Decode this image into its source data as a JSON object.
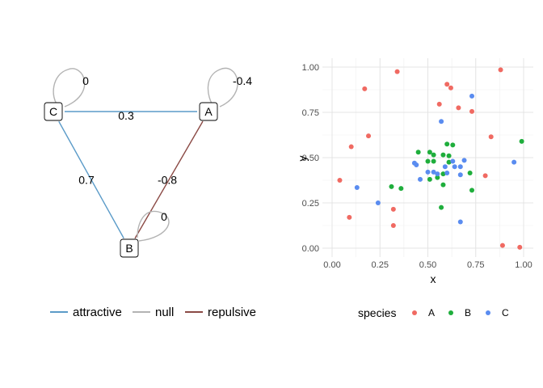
{
  "chart_data": [
    {
      "type": "network",
      "nodes": [
        {
          "id": "C",
          "label": "C"
        },
        {
          "id": "A",
          "label": "A"
        },
        {
          "id": "B",
          "label": "B"
        }
      ],
      "edges": [
        {
          "from": "C",
          "to": "A",
          "weight": "0.3",
          "type": "attractive"
        },
        {
          "from": "C",
          "to": "B",
          "weight": "0.7",
          "type": "attractive"
        },
        {
          "from": "A",
          "to": "B",
          "weight": "-0.8",
          "type": "repulsive"
        }
      ],
      "self_loops": [
        {
          "node": "C",
          "weight": "0",
          "type": "null"
        },
        {
          "node": "A",
          "weight": "-0.4",
          "type": "null"
        },
        {
          "node": "B",
          "weight": "0",
          "type": "null"
        }
      ],
      "legend": [
        {
          "label": "attractive",
          "color": "#5b9bc8"
        },
        {
          "label": "null",
          "color": "#b3b3b3"
        },
        {
          "label": "repulsive",
          "color": "#8b4a45"
        }
      ],
      "legend_position": "bottom"
    },
    {
      "type": "scatter",
      "xlabel": "x",
      "ylabel": "y",
      "xlim": [
        0,
        1
      ],
      "ylim": [
        0,
        1
      ],
      "xticks": [
        "0.00",
        "0.25",
        "0.50",
        "0.75",
        "1.00"
      ],
      "yticks": [
        "0.00",
        "0.25",
        "0.50",
        "0.75",
        "1.00"
      ],
      "grid": true,
      "legend_title": "species",
      "legend_position": "bottom",
      "series": [
        {
          "name": "A",
          "color": "#f06a62",
          "points": [
            [
              0.34,
              0.975
            ],
            [
              0.17,
              0.88
            ],
            [
              0.6,
              0.905
            ],
            [
              0.62,
              0.885
            ],
            [
              0.88,
              0.985
            ],
            [
              0.56,
              0.795
            ],
            [
              0.66,
              0.775
            ],
            [
              0.73,
              0.755
            ],
            [
              0.1,
              0.56
            ],
            [
              0.19,
              0.62
            ],
            [
              0.83,
              0.615
            ],
            [
              0.04,
              0.375
            ],
            [
              0.32,
              0.215
            ],
            [
              0.09,
              0.17
            ],
            [
              0.32,
              0.125
            ],
            [
              0.8,
              0.4
            ],
            [
              0.89,
              0.015
            ],
            [
              0.98,
              0.005
            ]
          ]
        },
        {
          "name": "B",
          "color": "#1fae3c",
          "points": [
            [
              0.45,
              0.53
            ],
            [
              0.51,
              0.53
            ],
            [
              0.53,
              0.515
            ],
            [
              0.58,
              0.515
            ],
            [
              0.61,
              0.51
            ],
            [
              0.63,
              0.57
            ],
            [
              0.6,
              0.575
            ],
            [
              0.5,
              0.48
            ],
            [
              0.53,
              0.48
            ],
            [
              0.61,
              0.475
            ],
            [
              0.99,
              0.59
            ],
            [
              0.51,
              0.38
            ],
            [
              0.55,
              0.39
            ],
            [
              0.58,
              0.41
            ],
            [
              0.58,
              0.35
            ],
            [
              0.72,
              0.415
            ],
            [
              0.31,
              0.34
            ],
            [
              0.36,
              0.33
            ],
            [
              0.73,
              0.32
            ],
            [
              0.57,
              0.225
            ]
          ]
        },
        {
          "name": "C",
          "color": "#5a8cf0",
          "points": [
            [
              0.73,
              0.84
            ],
            [
              0.57,
              0.7
            ],
            [
              0.43,
              0.47
            ],
            [
              0.44,
              0.46
            ],
            [
              0.5,
              0.42
            ],
            [
              0.53,
              0.42
            ],
            [
              0.55,
              0.41
            ],
            [
              0.59,
              0.45
            ],
            [
              0.63,
              0.48
            ],
            [
              0.64,
              0.45
            ],
            [
              0.67,
              0.45
            ],
            [
              0.69,
              0.485
            ],
            [
              0.67,
              0.405
            ],
            [
              0.6,
              0.415
            ],
            [
              0.46,
              0.38
            ],
            [
              0.95,
              0.475
            ],
            [
              0.13,
              0.335
            ],
            [
              0.24,
              0.25
            ],
            [
              0.67,
              0.145
            ]
          ]
        }
      ]
    }
  ]
}
